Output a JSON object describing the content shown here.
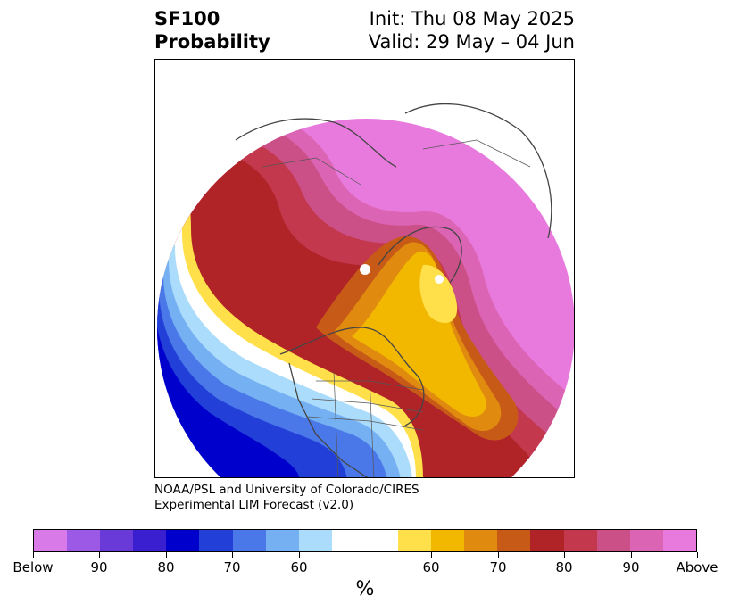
{
  "title": {
    "variable": "SF100",
    "subtitle": "Probability",
    "init": "Init: Thu 08 May 2025",
    "valid": "Valid: 29 May – 04 Jun"
  },
  "credit": {
    "line1": "NOAA/PSL and University of Colorado/CIRES",
    "line2": "Experimental LIM Forecast (v2.0)"
  },
  "colorbar": {
    "unit": "%",
    "tick_labels": [
      "Below",
      "90",
      "80",
      "70",
      "60",
      "60",
      "70",
      "80",
      "90",
      "Above"
    ],
    "colors_below": [
      "#d87ae8",
      "#9b59e6",
      "#6a3ad9",
      "#3a1fd0",
      "#0000cc",
      "#2240d8",
      "#4a78e8",
      "#74b0f2",
      "#acdcfb"
    ],
    "color_neutral": "#ffffff",
    "colors_above": [
      "#ffe04a",
      "#f2b800",
      "#e08a10",
      "#c85a18",
      "#b02428",
      "#c4384e",
      "#cc5088",
      "#dc64b4",
      "#e87ade"
    ]
  }
}
